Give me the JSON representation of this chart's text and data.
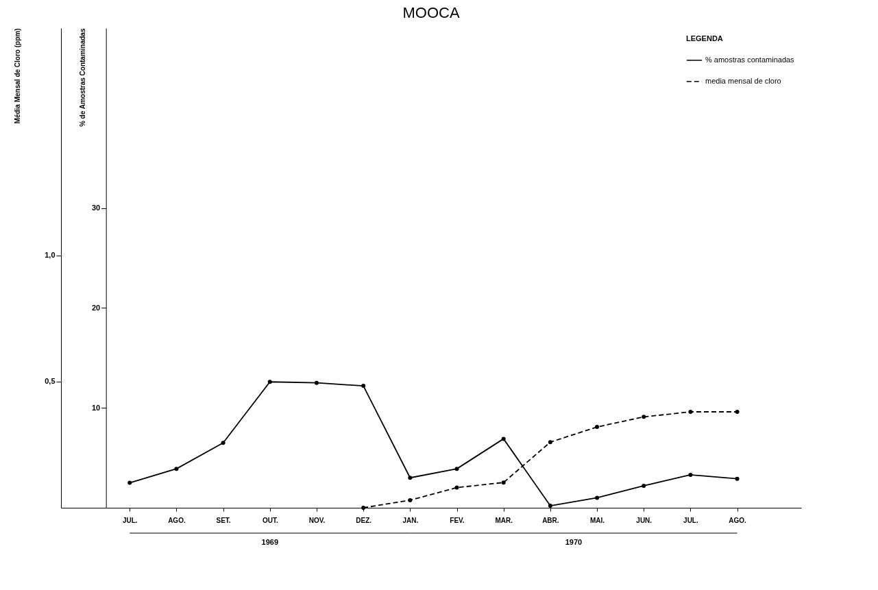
{
  "chart_data": {
    "type": "line",
    "title": "MOOCA",
    "ylabel": "% de Amostras Contaminadas",
    "y2label": "Média Mensal de Cloro (ppm)",
    "legend_title": "LEGENDA",
    "categories": [
      "JUL.",
      "AGO.",
      "SET.",
      "OUT.",
      "NOV.",
      "DEZ.",
      "JAN.",
      "FEV.",
      "MAR.",
      "ABR.",
      "MAI.",
      "JUN.",
      "JUL.",
      "AGO."
    ],
    "series": [
      {
        "name": "% amostras contaminadas",
        "color": "#000000",
        "line_style": "solid",
        "values": [
          2.5,
          3.9,
          6.5,
          12.6,
          12.5,
          12.2,
          3.0,
          3.9,
          6.9,
          0.2,
          1.0,
          2.2,
          3.3,
          2.9
        ]
      },
      {
        "name": "media mensal de cloro",
        "color": "#000000",
        "line_style": "dashed",
        "axis": "y2",
        "values": [
          null,
          null,
          null,
          null,
          null,
          0,
          0.03,
          0.08,
          0.1,
          0.26,
          0.32,
          0.36,
          0.38,
          0.38
        ]
      }
    ],
    "ylim": [
      0,
      48
    ],
    "yticks": [
      10,
      20,
      30
    ],
    "y2lim": [
      0,
      1.9
    ],
    "y2ticks": [
      {
        "value": 0.5,
        "label": "0,5"
      },
      {
        "value": 1.0,
        "label": "1,0"
      }
    ],
    "marker": "circle",
    "grid": false,
    "legend": "top right",
    "annotations": [
      "1969",
      "1970"
    ]
  }
}
